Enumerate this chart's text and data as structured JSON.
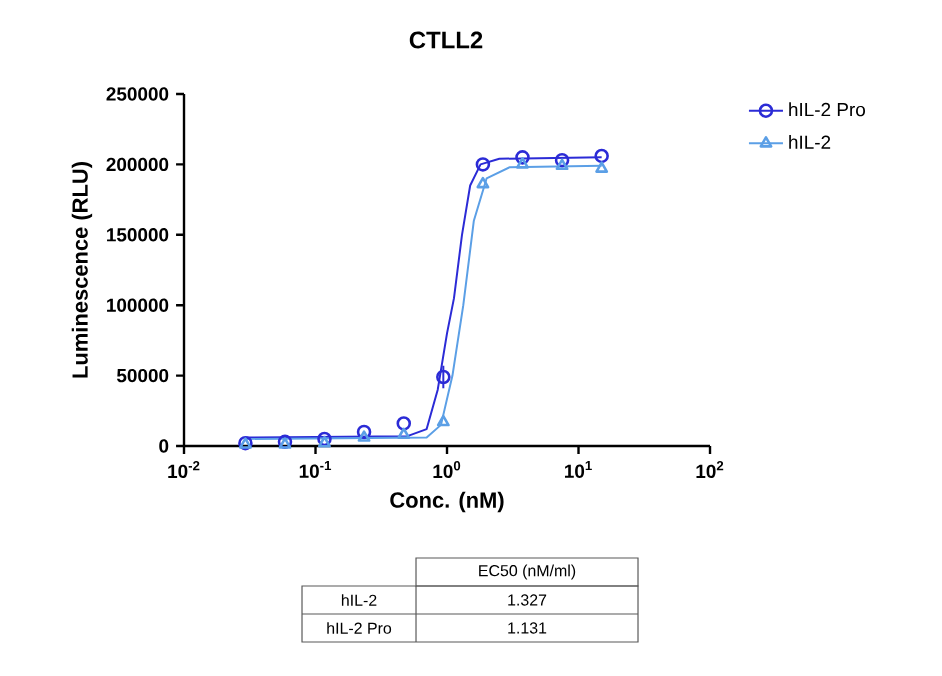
{
  "chart_data": {
    "type": "scatter",
    "title": "CTLL2",
    "xlabel": "Conc. (nM)",
    "ylabel": "Luminescence (RLU)",
    "log": "x",
    "xlim": [
      0.01,
      100
    ],
    "ylim": [
      0,
      250000
    ],
    "xticks": [
      {
        "value": 0.01,
        "label": "10$^{-2}$"
      },
      {
        "value": 0.1,
        "label": "10$^{-1}$"
      },
      {
        "value": 1,
        "label": "10$^{0}$"
      },
      {
        "value": 10,
        "label": "10$^{1}$"
      },
      {
        "value": 100,
        "label": "10$^{2}$"
      }
    ],
    "yticks": [
      0,
      50000,
      100000,
      150000,
      200000,
      250000
    ],
    "grid": false,
    "legend": "top right",
    "series": [
      {
        "name": "hIL-2 Pro",
        "marker": "circle",
        "color": "#2b2bd6",
        "x": [
          0.0293,
          0.0586,
          0.117,
          0.234,
          0.469,
          0.9375,
          1.875,
          3.75,
          7.5,
          15
        ],
        "values": [
          2000,
          3000,
          5000,
          10000,
          16000,
          49000,
          200000,
          205000,
          203000,
          206000
        ],
        "errors": [
          null,
          null,
          null,
          null,
          null,
          8000,
          null,
          null,
          null,
          null
        ]
      },
      {
        "name": "hIL-2",
        "marker": "triangle",
        "color": "#5b9fe6",
        "x": [
          0.0293,
          0.0586,
          0.117,
          0.234,
          0.469,
          0.9375,
          1.875,
          3.75,
          7.5,
          15
        ],
        "values": [
          1000,
          1000,
          2000,
          6000,
          8000,
          17000,
          186000,
          200000,
          199000,
          197000
        ]
      },
      {
        "type": "line",
        "marker": "none",
        "color": "#2b2bd6",
        "x": [
          0.0293,
          0.5,
          0.7,
          0.85,
          1.0,
          1.13,
          1.3,
          1.5,
          1.8,
          2.5,
          15
        ],
        "values": [
          6000,
          7000,
          12000,
          40000,
          80000,
          105000,
          150000,
          185000,
          200000,
          204000,
          205000
        ]
      },
      {
        "type": "line",
        "marker": "none",
        "color": "#5b9fe6",
        "x": [
          0.0293,
          0.7,
          0.9,
          1.1,
          1.33,
          1.6,
          2.0,
          3.0,
          15
        ],
        "values": [
          5000,
          6000,
          15000,
          50000,
          100000,
          160000,
          190000,
          198000,
          199000
        ]
      }
    ],
    "annotations": [
      "EC50 (nM/ml)",
      "hIL-2",
      "1.327",
      "hIL-2 Pro",
      "1.131"
    ]
  }
}
